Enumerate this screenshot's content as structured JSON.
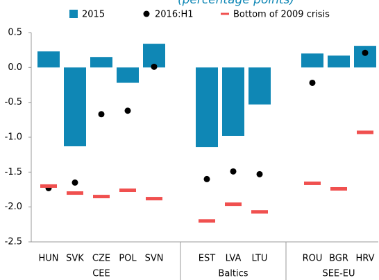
{
  "chart_data": {
    "type": "bar",
    "subtitle": "(percentage points)",
    "categories": [
      "HUN",
      "SVK",
      "CZE",
      "POL",
      "SVN",
      null,
      "EST",
      "LVA",
      "LTU",
      null,
      "ROU",
      "BGR",
      "HRV"
    ],
    "groups": [
      "CEE",
      "Baltics",
      "SEE-EU"
    ],
    "series": [
      {
        "name": "2015",
        "type": "bar",
        "color": "#0f87b5",
        "values": [
          0.23,
          -1.13,
          0.15,
          -0.22,
          0.34,
          null,
          -1.14,
          -0.98,
          -0.53,
          null,
          0.2,
          0.17,
          0.31
        ]
      },
      {
        "name": "2016:H1",
        "type": "dot",
        "color": "#000000",
        "values": [
          -1.73,
          -1.65,
          -0.67,
          -0.62,
          0.01,
          null,
          -1.6,
          -1.49,
          -1.53,
          null,
          -0.22,
          null,
          0.21
        ]
      },
      {
        "name": "Bottom of 2009 crisis",
        "type": "dash",
        "color": "#f0504f",
        "values": [
          -1.7,
          -1.8,
          -1.85,
          -1.76,
          -1.88,
          null,
          -2.2,
          -1.96,
          -2.07,
          null,
          -1.66,
          -1.74,
          -0.93
        ]
      }
    ],
    "ylim": [
      -2.5,
      0.5
    ],
    "yticks": [
      0.5,
      {
        "value": 0,
        "label": "0.0"
      },
      -0.5,
      {
        "value": -1,
        "label": "-1.0"
      },
      -1.5,
      {
        "value": -2,
        "label": "-2.0"
      },
      -2.5
    ]
  }
}
